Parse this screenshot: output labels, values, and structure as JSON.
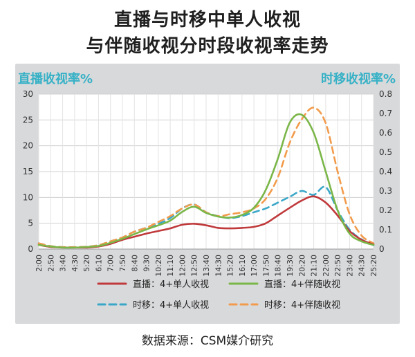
{
  "title_lines": [
    "直播与时移中单人收视",
    "与伴随收视分时段收视率走势"
  ],
  "source": "数据来源：CSM媒介研究",
  "chart_data": {
    "type": "line",
    "ylabel": "直播收视率%",
    "ylabel_right": "时移收视率%",
    "ylim": [
      0,
      30
    ],
    "yticks": [
      0,
      5,
      10,
      15,
      20,
      25,
      30
    ],
    "ylim_right": [
      0,
      0.8
    ],
    "yticks_right": [
      "0",
      "0.1",
      "0.2",
      "0.3",
      "0.4",
      "0.5",
      "0.6",
      "0.7",
      "0.8"
    ],
    "grid": true,
    "x_labels": [
      "2:00",
      "2:50",
      "3:40",
      "4:30",
      "5:20",
      "6:10",
      "7:00",
      "7:50",
      "8:40",
      "9:30",
      "10:20",
      "11:10",
      "12:00",
      "12:50",
      "13:40",
      "14:30",
      "15:20",
      "16:10",
      "17:00",
      "17:50",
      "18:40",
      "19:30",
      "20:20",
      "21:10",
      "22:00",
      "22:50",
      "23:40",
      "24:30",
      "25:20"
    ],
    "series": [
      {
        "name": "直播：4+单人收视",
        "axis": "left",
        "color": "#c0393b",
        "dash": false,
        "values": [
          0.8,
          0.4,
          0.3,
          0.3,
          0.3,
          0.5,
          1.0,
          1.8,
          2.4,
          3.0,
          3.5,
          4.0,
          4.7,
          4.9,
          4.6,
          4.1,
          4.0,
          4.1,
          4.3,
          5.0,
          6.5,
          8.0,
          9.4,
          10.2,
          9.0,
          6.5,
          3.5,
          1.8,
          0.9
        ]
      },
      {
        "name": "直播：4+伴随收视",
        "axis": "left",
        "color": "#7ab648",
        "dash": false,
        "values": [
          0.8,
          0.5,
          0.3,
          0.3,
          0.4,
          0.6,
          1.2,
          2.0,
          2.9,
          3.8,
          4.6,
          5.5,
          7.2,
          8.2,
          7.0,
          6.3,
          6.1,
          6.6,
          8.0,
          11.5,
          17.5,
          24.5,
          26.0,
          22.5,
          15.0,
          7.5,
          3.0,
          1.5,
          0.8
        ]
      },
      {
        "name": "时移：4+单人收视",
        "axis": "right",
        "color": "#3aa7c8",
        "dash": true,
        "values": [
          0.03,
          0.015,
          0.01,
          0.01,
          0.012,
          0.02,
          0.04,
          0.06,
          0.09,
          0.11,
          0.13,
          0.16,
          0.21,
          0.23,
          0.19,
          0.17,
          0.16,
          0.17,
          0.19,
          0.21,
          0.24,
          0.27,
          0.3,
          0.28,
          0.32,
          0.2,
          0.1,
          0.05,
          0.02
        ]
      },
      {
        "name": "时移：4+伴随收视",
        "axis": "right",
        "color": "#f29b4c",
        "dash": true,
        "values": [
          0.03,
          0.015,
          0.01,
          0.01,
          0.012,
          0.02,
          0.04,
          0.06,
          0.09,
          0.11,
          0.14,
          0.17,
          0.21,
          0.23,
          0.19,
          0.17,
          0.18,
          0.19,
          0.21,
          0.26,
          0.37,
          0.55,
          0.67,
          0.73,
          0.65,
          0.4,
          0.18,
          0.07,
          0.03
        ]
      }
    ],
    "legend": {
      "position": "bottom",
      "columns": 2
    }
  }
}
